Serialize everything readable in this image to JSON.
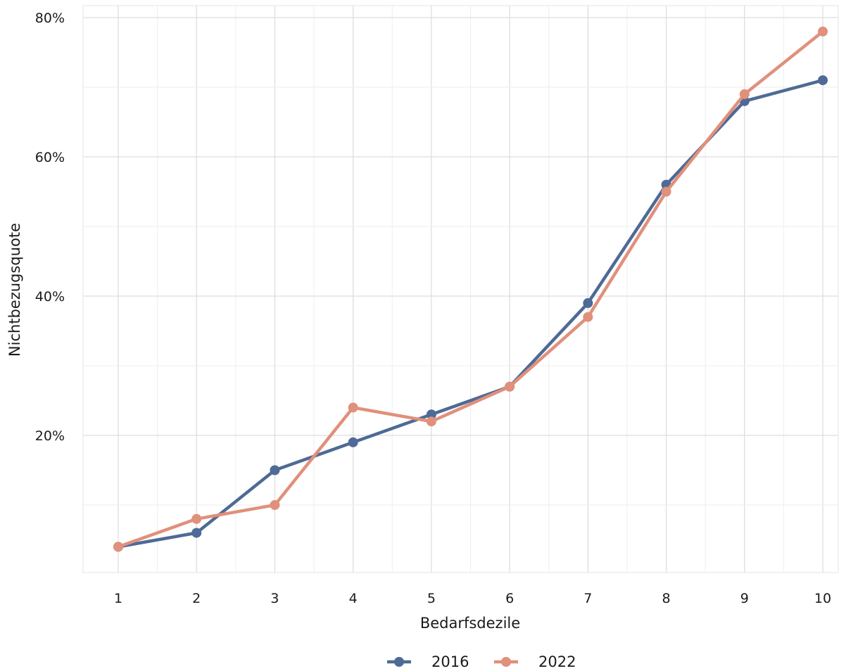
{
  "chart_data": {
    "type": "line",
    "xlabel": "Bedarfsdezile",
    "ylabel": "Nichtbezugsquote",
    "x": [
      1,
      2,
      3,
      4,
      5,
      6,
      7,
      8,
      9,
      10
    ],
    "x_tick_labels": [
      "1",
      "2",
      "3",
      "4",
      "5",
      "6",
      "7",
      "8",
      "9",
      "10"
    ],
    "y_tick_values": [
      20,
      40,
      60,
      80
    ],
    "y_tick_labels": [
      "20%",
      "40%",
      "60%",
      "80%"
    ],
    "ylim": [
      0,
      80
    ],
    "y_unit": "%",
    "grid": true,
    "legend_position": "bottom",
    "series": [
      {
        "name": "2016",
        "color": "#4e6a96",
        "values": [
          4,
          6,
          15,
          19,
          23,
          27,
          39,
          56,
          68,
          71
        ]
      },
      {
        "name": "2022",
        "color": "#e0907b",
        "values": [
          4,
          8,
          10,
          24,
          22,
          27,
          37,
          55,
          69,
          78
        ]
      }
    ]
  }
}
